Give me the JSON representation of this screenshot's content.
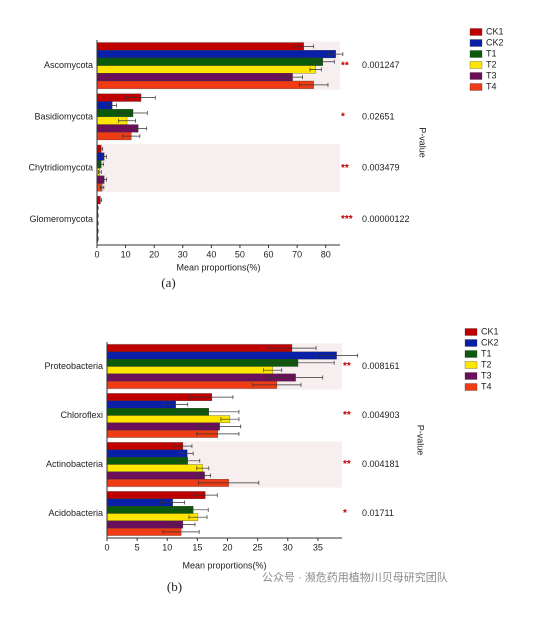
{
  "chart_data": [
    {
      "type": "bar",
      "orientation": "horizontal",
      "caption": "(a)",
      "x_label": "Mean proportions(%)",
      "y2_label": "P-value",
      "categories": [
        "Ascomycota",
        "Basidiomycota",
        "Chytridiomycota",
        "Glomeromycota"
      ],
      "p_values": [
        "0.001247",
        "0.02651",
        "0.003479",
        "0.00000122"
      ],
      "significance": [
        "**",
        "*",
        "**",
        "***"
      ],
      "xlim": [
        0,
        85
      ],
      "xticks": [
        0,
        10,
        20,
        30,
        40,
        50,
        60,
        70,
        80
      ],
      "series": [
        {
          "name": "CK1",
          "color": "#c00000",
          "values": [
            72.3,
            15.4,
            1.5,
            1.2
          ],
          "errors": [
            3.5,
            5,
            0.5,
            0.4
          ]
        },
        {
          "name": "CK2",
          "color": "#0a1fa8",
          "values": [
            83.5,
            5.3,
            2.5,
            0.3
          ],
          "errors": [
            2.5,
            1.5,
            0.8,
            0.1
          ]
        },
        {
          "name": "T1",
          "color": "#0b5a0b",
          "values": [
            79,
            12.6,
            1.5,
            0.3
          ],
          "errors": [
            4,
            5,
            0.8,
            0.1
          ]
        },
        {
          "name": "T2",
          "color": "#ffe600",
          "values": [
            76.5,
            10.5,
            1,
            0.3
          ],
          "errors": [
            2,
            3,
            0.5,
            0.1
          ]
        },
        {
          "name": "T3",
          "color": "#6b0f5a",
          "values": [
            68.4,
            14.4,
            2.5,
            0.3
          ],
          "errors": [
            3.5,
            3,
            0.8,
            0.1
          ]
        },
        {
          "name": "T4",
          "color": "#f03c14",
          "values": [
            75.8,
            12,
            1.8,
            0.3
          ],
          "errors": [
            5,
            3,
            0.6,
            0.1
          ]
        }
      ]
    },
    {
      "type": "bar",
      "orientation": "horizontal",
      "caption": "(b)",
      "x_label": "Mean proportions(%)",
      "y2_label": "P-value",
      "categories": [
        "Proteobacteria",
        "Chloroflexi",
        "Actinobacteria",
        "Acidobacteria"
      ],
      "p_values": [
        "0.008161",
        "0.004903",
        "0.004181",
        "0.01711"
      ],
      "significance": [
        "**",
        "**",
        "**",
        "*"
      ],
      "xlim": [
        0,
        39
      ],
      "xticks": [
        0,
        5,
        10,
        15,
        20,
        25,
        30,
        35
      ],
      "series": [
        {
          "name": "CK1",
          "color": "#c00000",
          "values": [
            30.7,
            17.4,
            12.6,
            16.3
          ],
          "errors": [
            4,
            3.5,
            1.5,
            2
          ]
        },
        {
          "name": "CK2",
          "color": "#0a1fa8",
          "values": [
            38.1,
            11.4,
            13.3,
            10.9
          ],
          "errors": [
            3.5,
            2,
            1,
            2
          ]
        },
        {
          "name": "T1",
          "color": "#0b5a0b",
          "values": [
            31.7,
            16.9,
            13.4,
            14.3
          ],
          "errors": [
            6,
            5,
            2,
            2.5
          ]
        },
        {
          "name": "T2",
          "color": "#ffe600",
          "values": [
            27.5,
            20.4,
            15.9,
            15.1
          ],
          "errors": [
            1.5,
            1.5,
            1,
            1.5
          ]
        },
        {
          "name": "T3",
          "color": "#6b0f5a",
          "values": [
            31.3,
            18.7,
            16.2,
            12.6
          ],
          "errors": [
            4.5,
            3.5,
            1,
            2
          ]
        },
        {
          "name": "T4",
          "color": "#f03c14",
          "values": [
            28.2,
            18.4,
            20.2,
            12.3
          ],
          "errors": [
            4,
            3.5,
            5,
            3
          ]
        }
      ]
    }
  ],
  "watermark": "公众号 · 濒危药用植物川贝母研究团队"
}
